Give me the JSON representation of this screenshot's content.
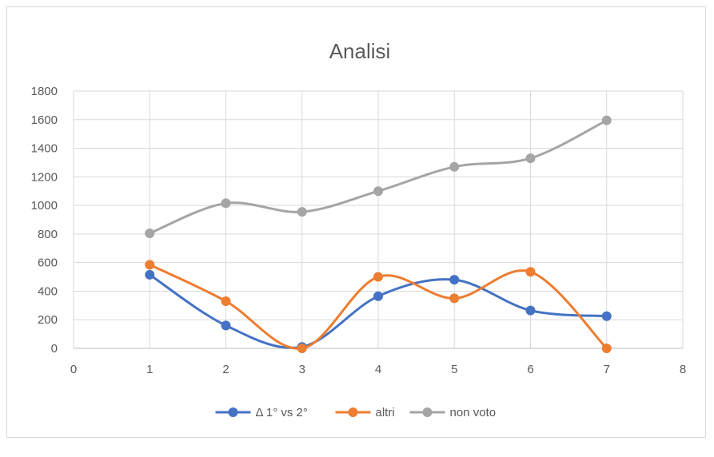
{
  "chart_data": {
    "type": "line",
    "title": "Analisi",
    "xlabel": "",
    "ylabel": "",
    "xlim": [
      0,
      8
    ],
    "ylim": [
      0,
      1800
    ],
    "x_ticks": [
      "0",
      "1",
      "2",
      "3",
      "4",
      "5",
      "6",
      "7",
      "8"
    ],
    "y_ticks": [
      "0",
      "200",
      "400",
      "600",
      "800",
      "1000",
      "1200",
      "1400",
      "1600",
      "1800"
    ],
    "grid": true,
    "smooth": true,
    "legend_position": "bottom",
    "x": [
      1,
      2,
      3,
      4,
      5,
      6,
      7
    ],
    "series": [
      {
        "name": "Δ 1° vs 2°",
        "color": "#4472c4",
        "values": [
          515,
          160,
          10,
          365,
          480,
          265,
          225
        ]
      },
      {
        "name": "altri",
        "color": "#ed7d31",
        "values": [
          585,
          330,
          0,
          500,
          350,
          535,
          0
        ]
      },
      {
        "name": "non voto",
        "color": "#a5a5a5",
        "values": [
          805,
          1015,
          955,
          1100,
          1270,
          1330,
          1595
        ]
      }
    ]
  }
}
